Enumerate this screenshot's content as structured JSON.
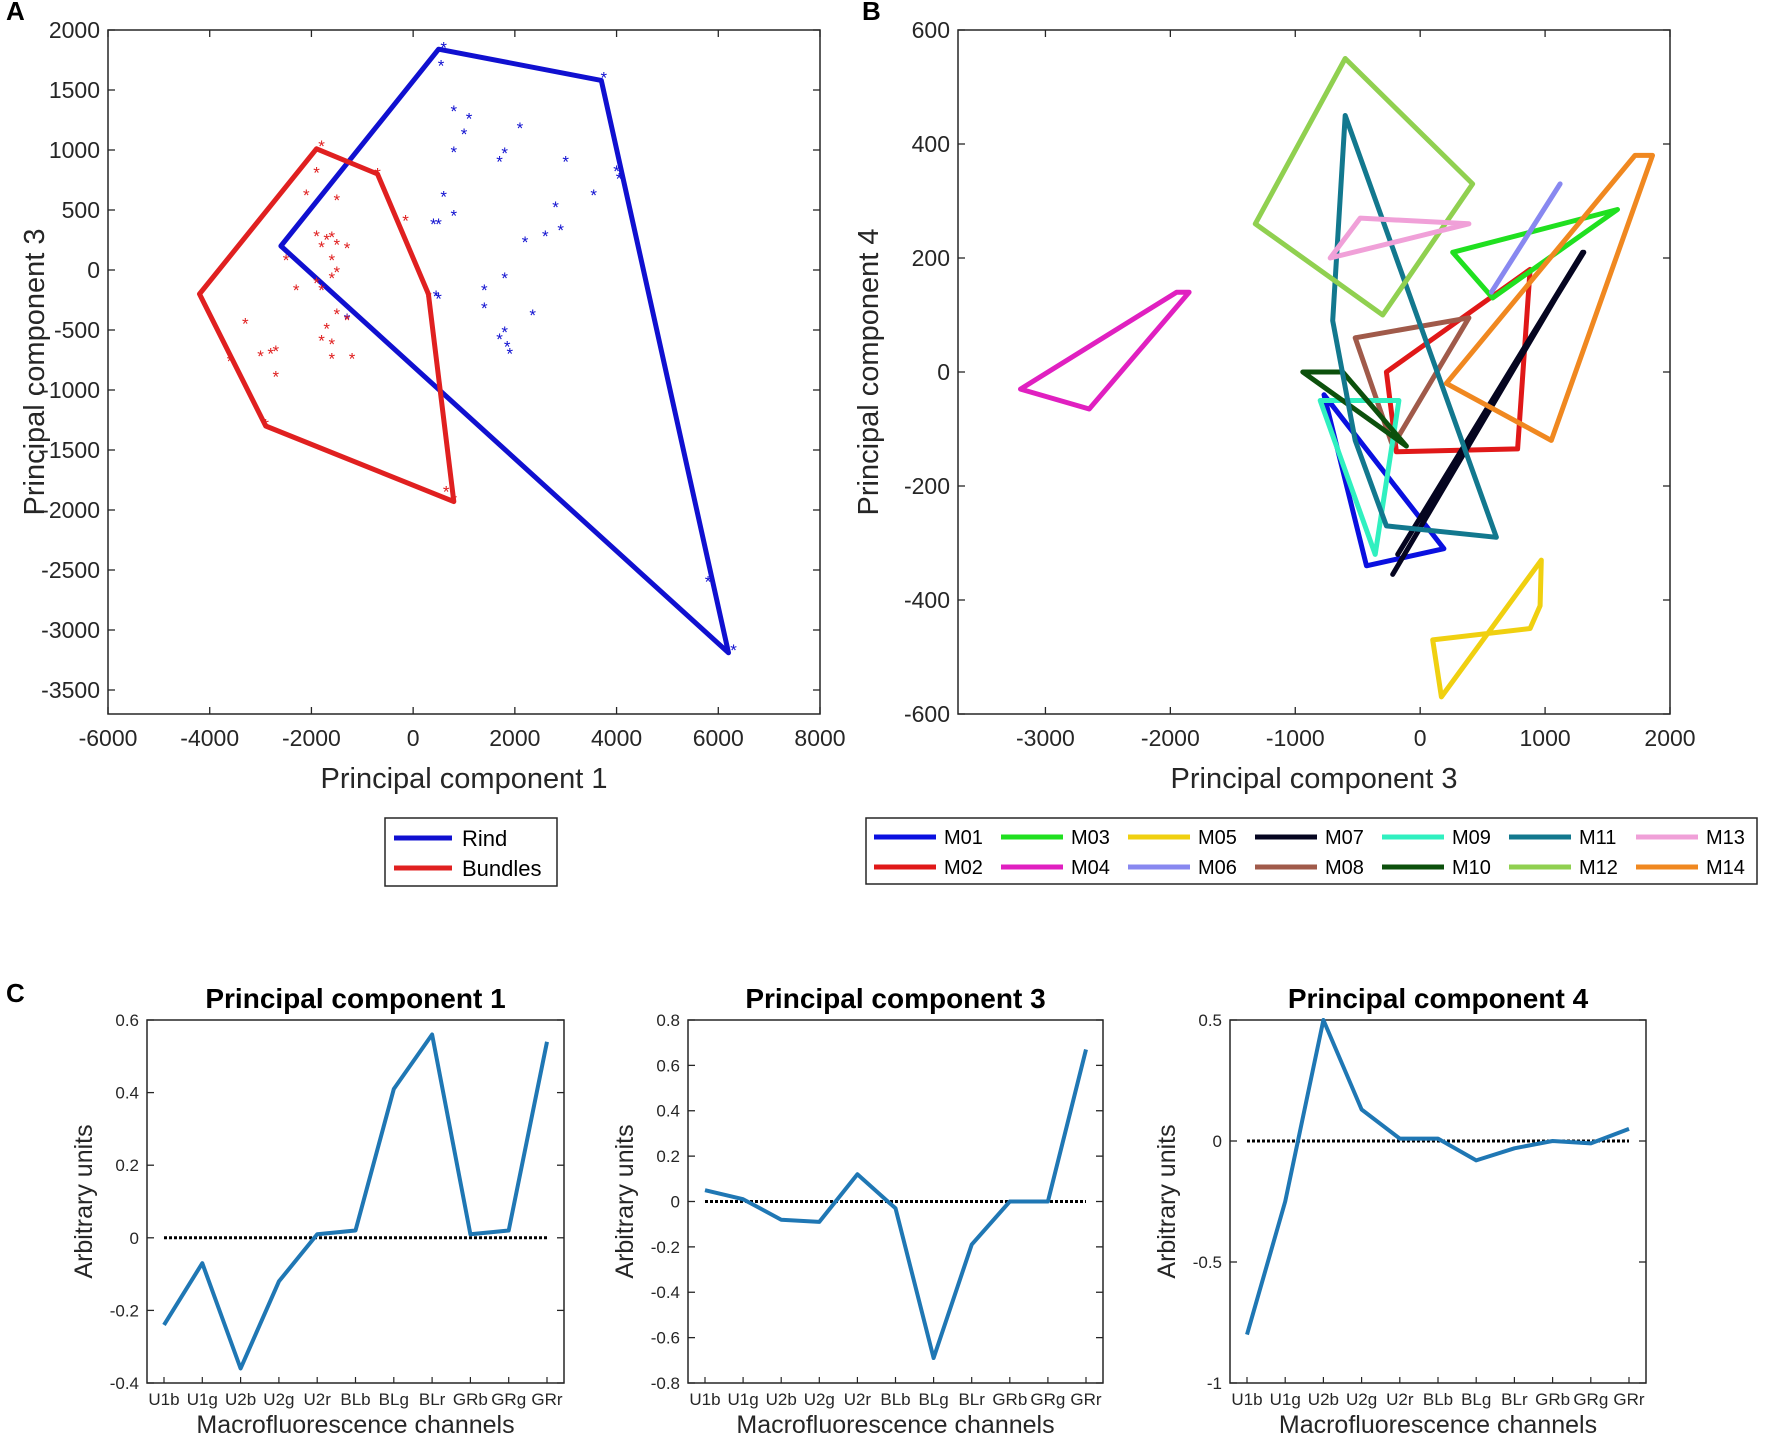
{
  "panel_labels": {
    "a": "A",
    "b": "B",
    "c": "C"
  },
  "chart_data": [
    {
      "type": "scatter",
      "panel": "A",
      "xlabel": "Principal component 1",
      "ylabel": "Principal component 3",
      "xlim": [
        -6000,
        8000
      ],
      "ylim": [
        -3700,
        2000
      ],
      "xticks": [
        -6000,
        -4000,
        -2000,
        0,
        2000,
        4000,
        6000,
        8000
      ],
      "yticks": [
        -3500,
        -3000,
        -2500,
        -2000,
        -1500,
        -1000,
        -500,
        0,
        500,
        1000,
        1500,
        2000
      ],
      "x_tick_labels": [
        "-6000",
        "-4000",
        "-2000",
        "0",
        "2000",
        "4000",
        "6000",
        "8000"
      ],
      "y_tick_labels": [
        "-3500",
        "-3000",
        "-2500",
        "-2000",
        "-1500",
        "-1000",
        "-500",
        "0",
        "500",
        "1000",
        "1500",
        "2000"
      ],
      "legend_position": "bottom-center",
      "series": [
        {
          "name": "Rind",
          "color": "#1010d0",
          "hull": [
            [
              500,
              1840
            ],
            [
              3700,
              1580
            ],
            [
              6200,
              -3190
            ],
            [
              -2600,
              200
            ],
            [
              500,
              1840
            ]
          ],
          "points": [
            [
              600,
              1870
            ],
            [
              550,
              1720
            ],
            [
              3750,
              1620
            ],
            [
              4000,
              840
            ],
            [
              4050,
              780
            ],
            [
              800,
              1340
            ],
            [
              2100,
              1200
            ],
            [
              1100,
              1280
            ],
            [
              1700,
              920
            ],
            [
              1800,
              990
            ],
            [
              3000,
              920
            ],
            [
              3550,
              640
            ],
            [
              600,
              630
            ],
            [
              800,
              470
            ],
            [
              400,
              400
            ],
            [
              500,
              400
            ],
            [
              800,
              1000
            ],
            [
              2800,
              540
            ],
            [
              2600,
              300
            ],
            [
              2900,
              350
            ],
            [
              2200,
              250
            ],
            [
              1800,
              -50
            ],
            [
              1400,
              -150
            ],
            [
              1400,
              -300
            ],
            [
              2350,
              -360
            ],
            [
              1800,
              -500
            ],
            [
              1700,
              -560
            ],
            [
              1850,
              -620
            ],
            [
              1900,
              -680
            ],
            [
              450,
              -200
            ],
            [
              500,
              -220
            ],
            [
              -1300,
              -390
            ],
            [
              6300,
              -3150
            ],
            [
              5800,
              -2580
            ],
            [
              1000,
              1150
            ]
          ]
        },
        {
          "name": "Bundles",
          "color": "#e02020",
          "hull": [
            [
              -1900,
              1010
            ],
            [
              -700,
              800
            ],
            [
              300,
              -200
            ],
            [
              800,
              -1930
            ],
            [
              -2900,
              -1300
            ],
            [
              -4200,
              -200
            ],
            [
              -1900,
              1010
            ]
          ],
          "points": [
            [
              -1800,
              1050
            ],
            [
              -700,
              820
            ],
            [
              -1900,
              830
            ],
            [
              -2100,
              640
            ],
            [
              -1500,
              600
            ],
            [
              -1900,
              300
            ],
            [
              -1700,
              270
            ],
            [
              -1600,
              290
            ],
            [
              -1500,
              230
            ],
            [
              -1800,
              210
            ],
            [
              -1300,
              200
            ],
            [
              -1600,
              100
            ],
            [
              -1500,
              0
            ],
            [
              -2500,
              100
            ],
            [
              -2300,
              -150
            ],
            [
              -1800,
              -150
            ],
            [
              -1900,
              -90
            ],
            [
              -1600,
              -50
            ],
            [
              -1500,
              -350
            ],
            [
              -1700,
              -470
            ],
            [
              -1300,
              -400
            ],
            [
              -1800,
              -570
            ],
            [
              -1600,
              -600
            ],
            [
              -1200,
              -720
            ],
            [
              -1600,
              -720
            ],
            [
              -3300,
              -430
            ],
            [
              -3000,
              -700
            ],
            [
              -2700,
              -660
            ],
            [
              -2800,
              -680
            ],
            [
              -3600,
              -740
            ],
            [
              -2700,
              -870
            ],
            [
              -2900,
              -1270
            ],
            [
              800,
              -1900
            ],
            [
              650,
              -1830
            ],
            [
              -150,
              430
            ],
            [
              300,
              -210
            ]
          ]
        }
      ]
    },
    {
      "type": "line",
      "panel": "B",
      "xlabel": "Principal component 3",
      "ylabel": "Principal component 4",
      "xlim": [
        -3700,
        2000
      ],
      "ylim": [
        -600,
        600
      ],
      "xticks": [
        -3000,
        -2000,
        -1000,
        0,
        1000,
        2000
      ],
      "yticks": [
        -600,
        -400,
        -200,
        0,
        200,
        400,
        600
      ],
      "x_tick_labels": [
        "-3000",
        "-2000",
        "-1000",
        "0",
        "1000",
        "2000"
      ],
      "y_tick_labels": [
        "-600",
        "-400",
        "-200",
        "0",
        "200",
        "400",
        "600"
      ],
      "legend_position": "bottom",
      "series": [
        {
          "name": "M01",
          "color": "#0a10e0",
          "hull": [
            [
              -770,
              -40
            ],
            [
              -430,
              -340
            ],
            [
              190,
              -310
            ],
            [
              -770,
              -40
            ]
          ]
        },
        {
          "name": "M02",
          "color": "#e01818",
          "hull": [
            [
              -270,
              0
            ],
            [
              -190,
              -140
            ],
            [
              780,
              -135
            ],
            [
              880,
              180
            ],
            [
              -270,
              0
            ]
          ]
        },
        {
          "name": "M03",
          "color": "#20e020",
          "hull": [
            [
              260,
              210
            ],
            [
              1580,
              285
            ],
            [
              580,
              130
            ],
            [
              260,
              210
            ]
          ]
        },
        {
          "name": "M04",
          "color": "#e020c0",
          "hull": [
            [
              -3200,
              -30
            ],
            [
              -2650,
              -65
            ],
            [
              -1850,
              140
            ],
            [
              -1950,
              140
            ],
            [
              -3200,
              -30
            ]
          ]
        },
        {
          "name": "M05",
          "color": "#f0d010",
          "hull": [
            [
              170,
              -570
            ],
            [
              100,
              -470
            ],
            [
              880,
              -450
            ],
            [
              960,
              -410
            ],
            [
              970,
              -330
            ],
            [
              170,
              -570
            ]
          ]
        },
        {
          "name": "M06",
          "color": "#8888f0",
          "hull": [
            [
              570,
              140
            ],
            [
              1120,
              330
            ]
          ]
        },
        {
          "name": "M07",
          "color": "#050520",
          "hull": [
            [
              -220,
              -355
            ],
            [
              1300,
              210
            ],
            [
              -180,
              -320
            ],
            [
              1310,
              210
            ]
          ]
        },
        {
          "name": "M08",
          "color": "#a05a4a",
          "hull": [
            [
              -520,
              60
            ],
            [
              390,
              95
            ],
            [
              -220,
              -130
            ],
            [
              -520,
              60
            ]
          ]
        },
        {
          "name": "M09",
          "color": "#30f0c0",
          "hull": [
            [
              -800,
              -50
            ],
            [
              -360,
              -320
            ],
            [
              -170,
              -50
            ],
            [
              -800,
              -50
            ]
          ]
        },
        {
          "name": "M10",
          "color": "#0c500c",
          "hull": [
            [
              -900,
              0
            ],
            [
              -620,
              0
            ],
            [
              -110,
              -130
            ],
            [
              -940,
              0
            ],
            [
              -900,
              0
            ]
          ]
        },
        {
          "name": "M11",
          "color": "#12788e",
          "hull": [
            [
              -600,
              450
            ],
            [
              -700,
              90
            ],
            [
              -520,
              -120
            ],
            [
              -270,
              -270
            ],
            [
              610,
              -290
            ],
            [
              -600,
              450
            ]
          ]
        },
        {
          "name": "M12",
          "color": "#90d050",
          "hull": [
            [
              -600,
              550
            ],
            [
              420,
              330
            ],
            [
              -300,
              100
            ],
            [
              -1320,
              260
            ],
            [
              -600,
              550
            ]
          ]
        },
        {
          "name": "M13",
          "color": "#f0a0d8",
          "hull": [
            [
              -720,
              200
            ],
            [
              -480,
              270
            ],
            [
              390,
              260
            ],
            [
              -720,
              200
            ]
          ]
        },
        {
          "name": "M14",
          "color": "#f08820",
          "hull": [
            [
              210,
              -20
            ],
            [
              1050,
              -120
            ],
            [
              1860,
              380
            ],
            [
              1720,
              380
            ],
            [
              210,
              -20
            ]
          ]
        }
      ]
    },
    {
      "type": "line",
      "panel": "C1",
      "title": "Principal component 1",
      "xlabel": "Macrofluorescence channels",
      "ylabel": "Arbitrary units",
      "categories": [
        "U1b",
        "U1g",
        "U2b",
        "U2g",
        "U2r",
        "BLb",
        "BLg",
        "BLr",
        "GRb",
        "GRg",
        "GRr"
      ],
      "ylim": [
        -0.4,
        0.6
      ],
      "yticks": [
        -0.4,
        -0.2,
        0,
        0.2,
        0.4,
        0.6
      ],
      "y_tick_labels": [
        "-0.4",
        "-0.2",
        "0",
        "0.2",
        "0.4",
        "0.6"
      ],
      "values": [
        -0.24,
        -0.07,
        -0.36,
        -0.12,
        0.01,
        0.02,
        0.41,
        0.56,
        0.01,
        0.02,
        0.54
      ],
      "color": "#1f77b4",
      "zero_line": true
    },
    {
      "type": "line",
      "panel": "C2",
      "title": "Principal component 3",
      "xlabel": "Macrofluorescence channels",
      "ylabel": "Arbitrary units",
      "categories": [
        "U1b",
        "U1g",
        "U2b",
        "U2g",
        "U2r",
        "BLb",
        "BLg",
        "BLr",
        "GRb",
        "GRg",
        "GRr"
      ],
      "ylim": [
        -0.8,
        0.8
      ],
      "yticks": [
        -0.8,
        -0.6,
        -0.4,
        -0.2,
        0,
        0.2,
        0.4,
        0.6,
        0.8
      ],
      "y_tick_labels": [
        "-0.8",
        "-0.6",
        "-0.4",
        "-0.2",
        "0",
        "0.2",
        "0.4",
        "0.6",
        "0.8"
      ],
      "values": [
        0.05,
        0.01,
        -0.08,
        -0.09,
        0.12,
        -0.03,
        -0.69,
        -0.19,
        0.0,
        0.0,
        0.67
      ],
      "color": "#1f77b4",
      "zero_line": true
    },
    {
      "type": "line",
      "panel": "C3",
      "title": "Principal component 4",
      "xlabel": "Macrofluorescence channels",
      "ylabel": "Arbitrary units",
      "categories": [
        "U1b",
        "U1g",
        "U2b",
        "U2g",
        "U2r",
        "BLb",
        "BLg",
        "BLr",
        "GRb",
        "GRg",
        "GRr"
      ],
      "ylim": [
        -1.0,
        0.5
      ],
      "yticks": [
        -1,
        -0.5,
        0,
        0.5
      ],
      "y_tick_labels": [
        "-1",
        "-0.5",
        "0",
        "0.5"
      ],
      "values": [
        -0.8,
        -0.25,
        0.5,
        0.13,
        0.01,
        0.01,
        -0.08,
        -0.03,
        0.0,
        -0.01,
        0.05
      ],
      "color": "#1f77b4",
      "zero_line": true
    }
  ]
}
